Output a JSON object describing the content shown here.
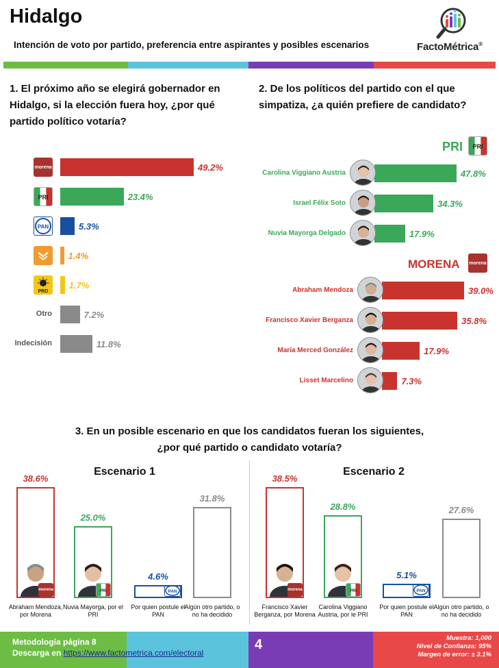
{
  "header": {
    "title": "Hidalgo",
    "subtitle": "Intención de voto por partido, preferencia entre aspirantes y posibles escenarios",
    "logo": "FactoMétrica",
    "logo_mark": "®"
  },
  "colors": {
    "green": "#3aa858",
    "red": "#c9332d",
    "blue": "#1a4fa0",
    "orange": "#f39a2e",
    "yellow": "#f5c518",
    "gray": "#8a8a8a",
    "stripe_green": "#6dbd45",
    "stripe_cyan": "#5bc4dc",
    "stripe_purple": "#7a3cb5",
    "stripe_red": "#e84848"
  },
  "q1": {
    "text": "1. El próximo año se elegirá gobernador en Hidalgo, si la elección fuera hoy, ¿por qué partido político votaría?"
  },
  "q2": {
    "text": "2. De los políticos del partido con el que simpatiza, ¿a quién prefiere de candidato?",
    "pri_label": "PRI",
    "morena_label": "MORENA"
  },
  "q3": {
    "text_line1": "3. En un posible escenario en que los candidatos fueran los siguientes,",
    "text_line2": "¿por qué partido o candidato votaría?"
  },
  "party_icons": {
    "morena": "morena",
    "pri": "PRI",
    "pan": "PAN",
    "prd": "PRD"
  },
  "chart_data": [
    {
      "type": "bar",
      "orientation": "horizontal",
      "categories": [
        "morena",
        "PRI",
        "PAN",
        "MC",
        "PRD",
        "Otro",
        "Indecisión"
      ],
      "category_labels": [
        "",
        "",
        "",
        "",
        "",
        "Otro",
        "Indecisión"
      ],
      "values": [
        49.2,
        23.4,
        5.3,
        1.4,
        1.7,
        7.2,
        11.8
      ],
      "value_labels": [
        "49.2%",
        "23.4%",
        "5.3%",
        "1.4%",
        "1.7%",
        "7.2%",
        "11.8%"
      ],
      "colors": [
        "#c9332d",
        "#3aa858",
        "#1a4fa0",
        "#f39a2e",
        "#f5c518",
        "#8a8a8a",
        "#8a8a8a"
      ]
    },
    {
      "type": "bar",
      "orientation": "horizontal",
      "group": "PRI",
      "categories": [
        "Carolina Viggiano Austria",
        "Israel Félix Soto",
        "Nuvia Mayorga Delgado"
      ],
      "values": [
        47.8,
        34.3,
        17.9
      ],
      "value_labels": [
        "47.8%",
        "34.3%",
        "17.9%"
      ],
      "color": "#3aa858"
    },
    {
      "type": "bar",
      "orientation": "horizontal",
      "group": "MORENA",
      "categories": [
        "Abraham Mendoza",
        "Francisco Xavier Berganza",
        "María Merced González",
        "Lisset Marcelino"
      ],
      "values": [
        39.0,
        35.8,
        17.9,
        7.3
      ],
      "value_labels": [
        "39.0%",
        "35.8%",
        "17.9%",
        "7.3%"
      ],
      "color": "#c9332d"
    },
    {
      "type": "bar",
      "title": "Escenario 1",
      "categories": [
        "Abraham Mendoza, por Morena",
        "Nuvia Mayorga, por el PRI",
        "Por quien postule el PAN",
        "Algún otro partido, o no ha decidido"
      ],
      "values": [
        38.6,
        25.0,
        4.6,
        31.8
      ],
      "value_labels": [
        "38.6%",
        "25.0%",
        "4.6%",
        "31.8%"
      ],
      "colors": [
        "#c9332d",
        "#3aa858",
        "#1a4fa0",
        "#8a8a8a"
      ]
    },
    {
      "type": "bar",
      "title": "Escenario 2",
      "categories": [
        "Francisco Xavier Berganza, por Morena",
        "Carolina Viggiano Austria, por le PRI",
        "Por quien postule el PAN",
        "Algún otro partido, o no ha decidido"
      ],
      "values": [
        38.5,
        28.8,
        5.1,
        27.6
      ],
      "value_labels": [
        "38.5%",
        "28.8%",
        "5.1%",
        "27.6%"
      ],
      "colors": [
        "#c9332d",
        "#3aa858",
        "#1a4fa0",
        "#8a8a8a"
      ]
    }
  ],
  "footer": {
    "metodologia": "Metodología página 8",
    "descarga_label": "Descarga en",
    "descarga_url": "https://www.factometrica.com/electoral",
    "page": "4",
    "muestra": "Muestra: 1,000",
    "confianza": "Nivel de Confianza: 95%",
    "error": "Margen de error: ± 3.1%"
  }
}
